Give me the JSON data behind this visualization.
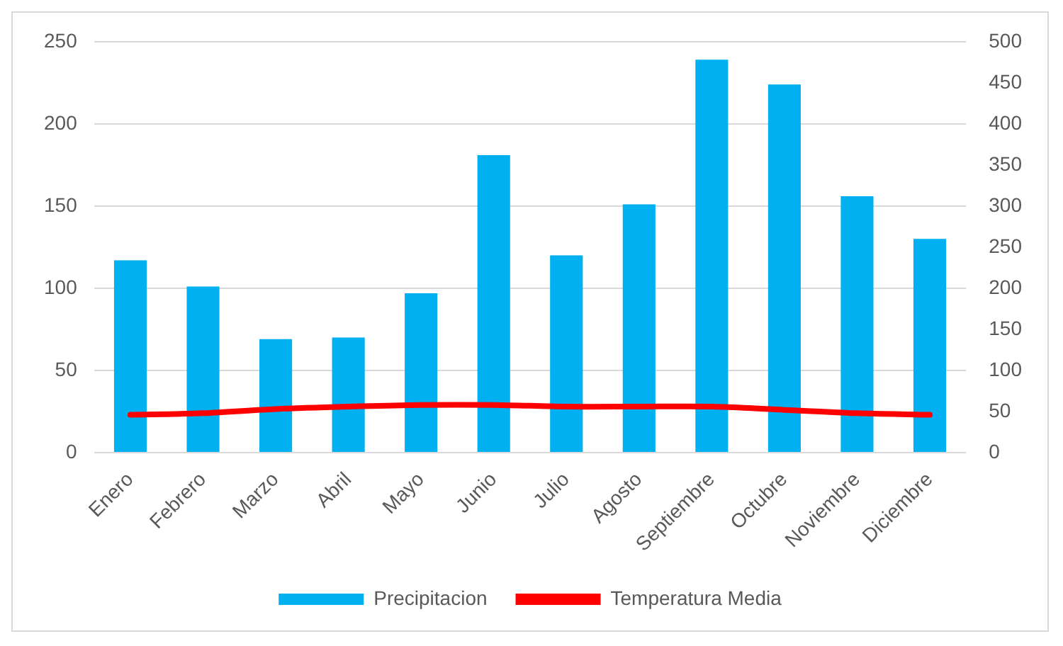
{
  "chart_data": {
    "type": "bar",
    "categories": [
      "Enero",
      "Febrero",
      "Marzo",
      "Abril",
      "Mayo",
      "Junio",
      "Julio",
      "Agosto",
      "Septiembre",
      "Octubre",
      "Noviembre",
      "Diciembre"
    ],
    "series": [
      {
        "name": "Precipitacion",
        "color": "#00b0f0",
        "values": [
          117,
          101,
          69,
          70,
          97,
          181,
          120,
          151,
          239,
          224,
          156,
          130
        ]
      },
      {
        "name": "Temperatura Media",
        "type": "line",
        "axis": "y2",
        "color": "#ff0000",
        "values": [
          46,
          48,
          53,
          56,
          58,
          58,
          56,
          56,
          56,
          52,
          48,
          46
        ]
      }
    ],
    "ylim": [
      0,
      250
    ],
    "yticks": [
      0,
      50,
      100,
      150,
      200,
      250
    ],
    "y2lim": [
      0,
      500
    ],
    "y2ticks": [
      0,
      50,
      100,
      150,
      200,
      250,
      300,
      350,
      400,
      450,
      500
    ],
    "grid": "y",
    "legend": "bottom",
    "marker": "none"
  }
}
